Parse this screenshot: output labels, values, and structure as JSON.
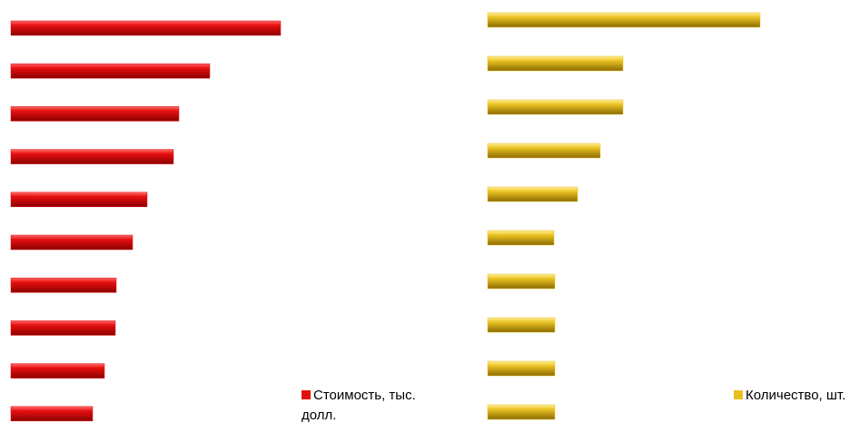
{
  "chart_data": [
    {
      "type": "bar",
      "orientation": "horizontal",
      "series": [
        {
          "name": "Стоимость, тыс. долл.",
          "color": "#e01010",
          "values": [
            297,
            219,
            185,
            179,
            150,
            134,
            116,
            115,
            103,
            90
          ]
        }
      ]
    },
    {
      "type": "bar",
      "orientation": "horizontal",
      "series": [
        {
          "name": "Количество, шт.",
          "color": "#e8c020",
          "values": [
            300,
            149,
            149,
            124,
            99,
            73,
            74,
            74,
            74,
            74
          ]
        }
      ]
    }
  ]
}
